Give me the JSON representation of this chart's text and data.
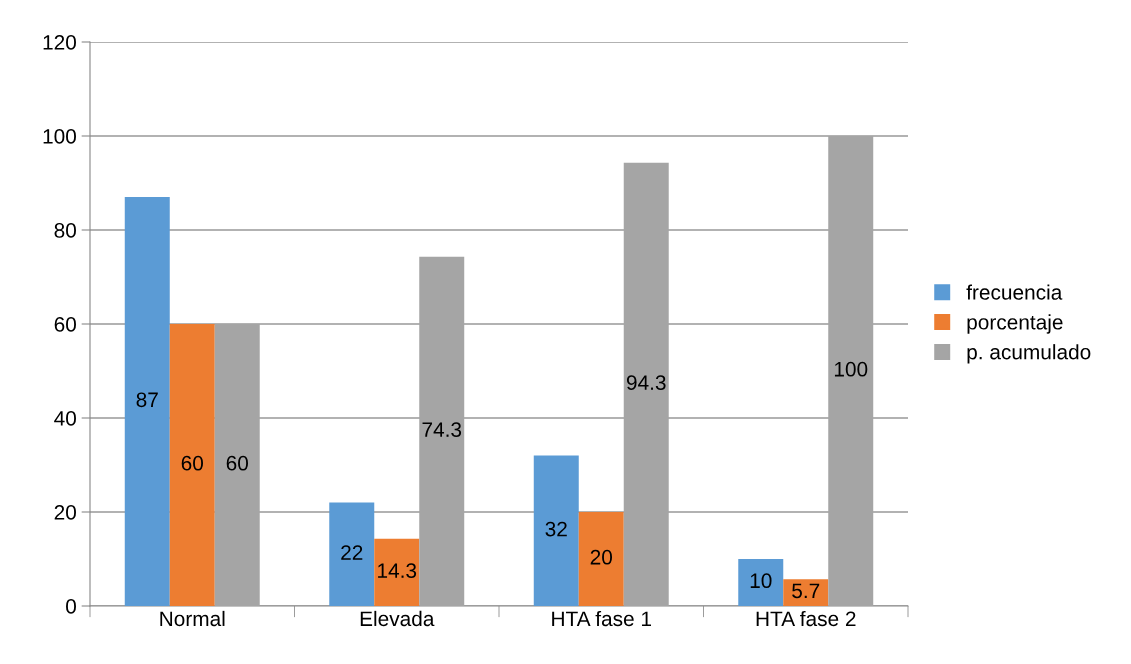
{
  "chart_data": {
    "type": "bar",
    "categories": [
      "Normal",
      "Elevada",
      "HTA fase 1",
      "HTA fase 2"
    ],
    "series": [
      {
        "name": "frecuencia",
        "color": "#5b9bd5",
        "values": [
          87,
          22,
          32,
          10
        ]
      },
      {
        "name": "porcentaje",
        "color": "#ed7d31",
        "values": [
          60,
          14.3,
          20,
          5.7
        ]
      },
      {
        "name": "p. acumulado",
        "color": "#a5a5a5",
        "values": [
          60,
          74.3,
          94.3,
          100
        ]
      }
    ],
    "ylim": [
      0,
      120
    ],
    "yticks": [
      0,
      20,
      40,
      60,
      80,
      100,
      120
    ],
    "grid": "y",
    "legend": "right",
    "data_labels": true
  }
}
